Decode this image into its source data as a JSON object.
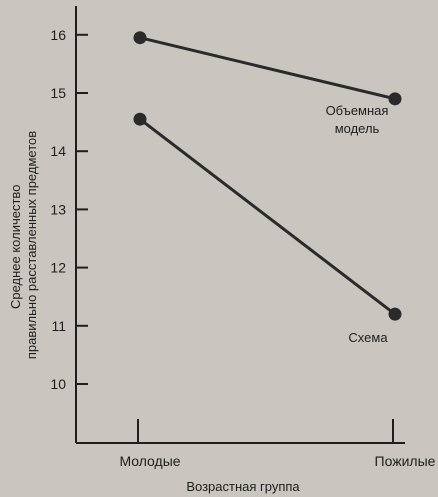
{
  "chart_data": {
    "type": "line",
    "categories": [
      "Молодые",
      "Пожилые"
    ],
    "xlabel": "Возрастная группа",
    "ylabel_lines": [
      "Среднее количество",
      "правильно расставленных предметов"
    ],
    "ylim": [
      9.0,
      16.5
    ],
    "yticks": [
      10,
      11,
      12,
      13,
      14,
      15,
      16
    ],
    "grid": false,
    "series": [
      {
        "name_lines": [
          "Объемная",
          "модель"
        ],
        "values": [
          15.95,
          14.9
        ],
        "color": "#2a2a2a"
      },
      {
        "name_lines": [
          "Схема"
        ],
        "values": [
          14.55,
          11.2
        ],
        "color": "#2a2a2a"
      }
    ]
  }
}
